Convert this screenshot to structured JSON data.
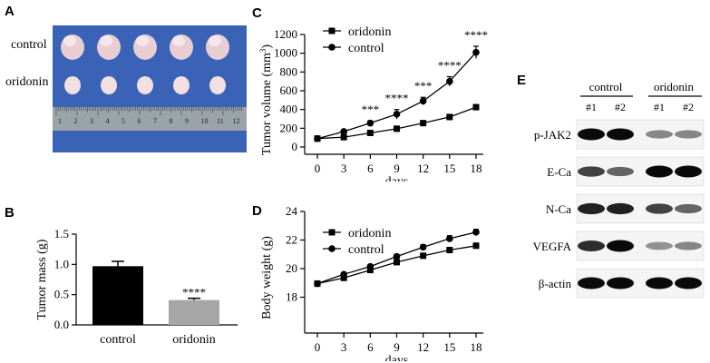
{
  "panels": {
    "A": "A",
    "B": "B",
    "C": "C",
    "D": "D",
    "E": "E"
  },
  "photo": {
    "row_labels": [
      "control",
      "oridonin"
    ],
    "ruler_numbers": [
      "1",
      "2",
      "3",
      "4",
      "5",
      "6",
      "7",
      "8",
      "9",
      "10",
      "11",
      "12"
    ],
    "colors": {
      "background": "#3a63b8",
      "tumor_control": "#e8cdd3",
      "tumor_oridonin": "#f1dfe2",
      "ruler": "#9aa3a8"
    }
  },
  "chart_data": [
    {
      "id": "B",
      "type": "bar",
      "categories": [
        "control",
        "oridonin"
      ],
      "values": [
        0.97,
        0.41
      ],
      "errors": [
        0.08,
        0.03
      ],
      "colors": [
        "#000000",
        "#a6a6a6"
      ],
      "annotations": [
        {
          "category": "oridonin",
          "text": "****"
        }
      ],
      "ylabel": "Tumor mass (g)",
      "xlabel": "",
      "ylim": [
        0,
        1.5
      ],
      "yticks": [
        0.0,
        0.5,
        1.0,
        1.5
      ],
      "ytick_labels": [
        "0.0",
        "0.5",
        "1.0",
        "1.5"
      ]
    },
    {
      "id": "C",
      "type": "line",
      "x": [
        0,
        3,
        6,
        9,
        12,
        15,
        18
      ],
      "series": [
        {
          "name": "oridonin",
          "marker": "square",
          "values": [
            90,
            105,
            150,
            195,
            255,
            320,
            425
          ],
          "errors": [
            8,
            10,
            12,
            15,
            20,
            22,
            25
          ]
        },
        {
          "name": "control",
          "marker": "circle",
          "values": [
            90,
            165,
            255,
            350,
            490,
            700,
            1010
          ],
          "errors": [
            8,
            12,
            25,
            50,
            40,
            50,
            65
          ]
        }
      ],
      "annotations": [
        {
          "x": 6,
          "text": "***"
        },
        {
          "x": 9,
          "text": "****"
        },
        {
          "x": 12,
          "text": "***"
        },
        {
          "x": 15,
          "text": "****"
        },
        {
          "x": 18,
          "text": "****"
        }
      ],
      "ylabel": "Tumor volume (mm³)",
      "ylabel_base": "Tumor volume (mm",
      "ylabel_sup": "3",
      "ylabel_close": ")",
      "xlabel": "days",
      "ylim": [
        0,
        1200
      ],
      "yticks": [
        0,
        200,
        400,
        600,
        800,
        1000,
        1200
      ],
      "xticks": [
        0,
        3,
        6,
        9,
        12,
        15,
        18
      ],
      "legend": "top-left"
    },
    {
      "id": "D",
      "type": "line",
      "x": [
        0,
        3,
        6,
        9,
        12,
        15,
        18
      ],
      "series": [
        {
          "name": "oridonin",
          "marker": "square",
          "values": [
            18.95,
            19.35,
            19.9,
            20.45,
            20.9,
            21.3,
            21.6
          ],
          "errors": [
            0.05,
            0.1,
            0.1,
            0.12,
            0.12,
            0.15,
            0.18
          ]
        },
        {
          "name": "control",
          "marker": "circle",
          "values": [
            18.95,
            19.6,
            20.15,
            20.85,
            21.5,
            22.1,
            22.55
          ],
          "errors": [
            0.05,
            0.1,
            0.12,
            0.15,
            0.18,
            0.2,
            0.2
          ]
        }
      ],
      "ylabel": "Body weight (g)",
      "xlabel": "days",
      "ylim": [
        16,
        24
      ],
      "yticks": [
        18,
        20,
        22,
        24
      ],
      "xticks": [
        0,
        3,
        6,
        9,
        12,
        15,
        18
      ],
      "legend": "top-left"
    }
  ],
  "western_blot": {
    "groups": [
      "control",
      "oridonin"
    ],
    "lanes": [
      "#1",
      "#2",
      "#1",
      "#2"
    ],
    "proteins": [
      {
        "name": "p-JAK2",
        "intensity": [
          1.0,
          1.0,
          0.45,
          0.45
        ]
      },
      {
        "name": "E-Ca",
        "intensity": [
          0.75,
          0.6,
          1.0,
          1.0
        ]
      },
      {
        "name": "N-Ca",
        "intensity": [
          0.9,
          0.9,
          0.75,
          0.6
        ]
      },
      {
        "name": "VEGFA",
        "intensity": [
          0.85,
          1.0,
          0.4,
          0.45
        ]
      },
      {
        "name": "β-actin",
        "intensity": [
          1.0,
          1.0,
          1.0,
          1.0
        ]
      }
    ]
  }
}
